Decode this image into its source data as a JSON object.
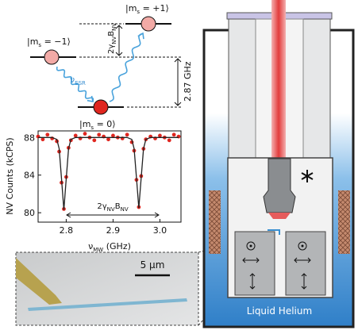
{
  "chart_data": {
    "type": "scatter",
    "xlabel": {
      "symbol": "ν",
      "sub": "MW",
      "unit": "(GHz)"
    },
    "ylabel": "NV Counts (kCPS)",
    "annotation": [
      "2γ",
      "NV",
      "B",
      "NV"
    ],
    "x": [
      2.74,
      2.75,
      2.76,
      2.77,
      2.78,
      2.785,
      2.79,
      2.795,
      2.8,
      2.805,
      2.81,
      2.82,
      2.83,
      2.84,
      2.85,
      2.86,
      2.87,
      2.88,
      2.89,
      2.9,
      2.91,
      2.92,
      2.93,
      2.94,
      2.945,
      2.95,
      2.955,
      2.96,
      2.965,
      2.97,
      2.98,
      2.99,
      3.0,
      3.01,
      3.02,
      3.03,
      3.04
    ],
    "series": [
      {
        "type": "scatter",
        "color": "#e0261f",
        "values": [
          88.1,
          87.8,
          88.3,
          87.9,
          87.6,
          86.5,
          83.2,
          80.4,
          83.8,
          86.9,
          87.7,
          88.2,
          87.9,
          88.4,
          88.0,
          87.7,
          88.3,
          88.1,
          87.8,
          88.2,
          88.0,
          87.9,
          88.3,
          87.5,
          86.6,
          83.5,
          80.6,
          83.9,
          86.8,
          87.8,
          88.1,
          87.9,
          88.2,
          88.0,
          87.7,
          88.3,
          88.1
        ]
      },
      {
        "type": "line",
        "color": "#222222",
        "values": [
          88,
          88,
          88,
          88,
          87.8,
          86.8,
          83.6,
          80.3,
          83.6,
          86.8,
          87.8,
          88,
          88,
          88,
          88,
          88,
          88,
          88,
          88,
          88,
          88,
          88,
          88,
          87.8,
          86.8,
          83.7,
          80.5,
          83.7,
          86.8,
          87.8,
          88,
          88,
          88,
          88,
          88,
          88,
          88
        ]
      }
    ],
    "xlim": [
      2.74,
      3.045
    ],
    "xticks": [
      2.8,
      2.9,
      {
        "value": 3,
        "label": "3.0"
      }
    ],
    "ylim": [
      79,
      88.7
    ],
    "yticks": [
      80,
      84,
      88
    ]
  },
  "diagram": {
    "states": [
      [
        "|m",
        "s",
        " = −1⟩"
      ],
      [
        "|m",
        "s",
        " = +1⟩"
      ],
      [
        "|m",
        "s",
        " = 0⟩"
      ]
    ],
    "zeeman": [
      "2γ",
      "NV",
      "B",
      "NV"
    ],
    "esr": [
      "ν",
      "ESR"
    ],
    "zfs": "2.87 GHz"
  },
  "micrograph": {
    "scale": "5 μm"
  },
  "cryostat": {
    "label": "Liquid Helium"
  }
}
